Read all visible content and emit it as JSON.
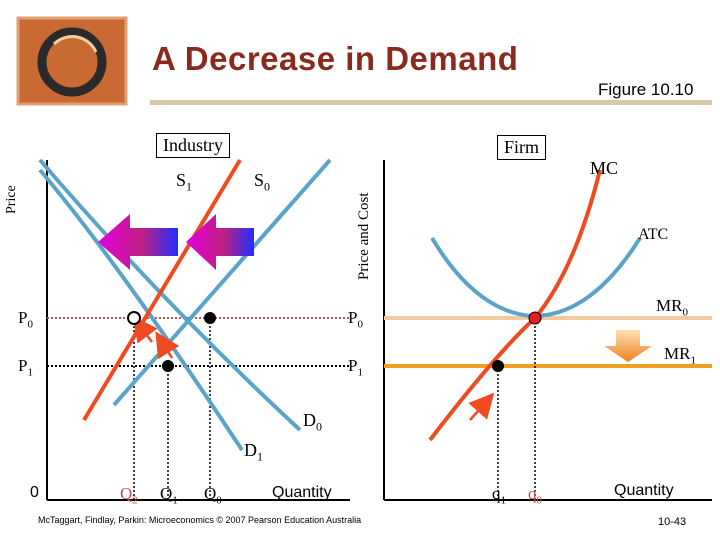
{
  "slide": {
    "title": "A Decrease in Demand",
    "figure_label": "Figure 10.10",
    "footer": "McTaggart, Findlay, Parkin: Microeconomics © 2007 Pearson Education Australia",
    "page_number": "10-43"
  },
  "industry": {
    "panel_label": "Industry",
    "y_axis_label": "Price",
    "x_axis_label": "Quantity",
    "origin": "0",
    "supply_labels": {
      "s1": "S",
      "s1_sub": "1",
      "s0": "S",
      "s0_sub": "0"
    },
    "demand_labels": {
      "d0": "D",
      "d0_sub": "0",
      "d1": "D",
      "d1_sub": "1"
    },
    "price_labels": {
      "p0": "P",
      "p0_sub": "0",
      "p1": "P",
      "p1_sub": "1"
    },
    "quantity_labels": {
      "q2": "Q",
      "q2_sub": "2",
      "q1": "Q",
      "q1_sub": "1",
      "q0": "Q",
      "q0_sub": "0"
    }
  },
  "firm": {
    "panel_label": "Firm",
    "y_axis_label": "Price and Cost",
    "x_axis_label": "Quantity",
    "curve_labels": {
      "mc": "MC",
      "atc": "ATC",
      "mr0": "MR",
      "mr0_sub": "0",
      "mr1": "MR",
      "mr1_sub": "1"
    },
    "price_labels": {
      "p0": "P",
      "p0_sub": "0",
      "p1": "P",
      "p1_sub": "1"
    },
    "quantity_labels": {
      "q1": "q",
      "q1_sub": "1",
      "q0": "q",
      "q0_sub": "0"
    }
  },
  "colors": {
    "title": "#8a2a1e",
    "supply": "#f04a20",
    "demand": "#5ba3c9",
    "price_line": "#c0504d",
    "mr0": "#f5c9a0",
    "mr1": "#f0a020",
    "shift_arrow": "#e070c0"
  }
}
